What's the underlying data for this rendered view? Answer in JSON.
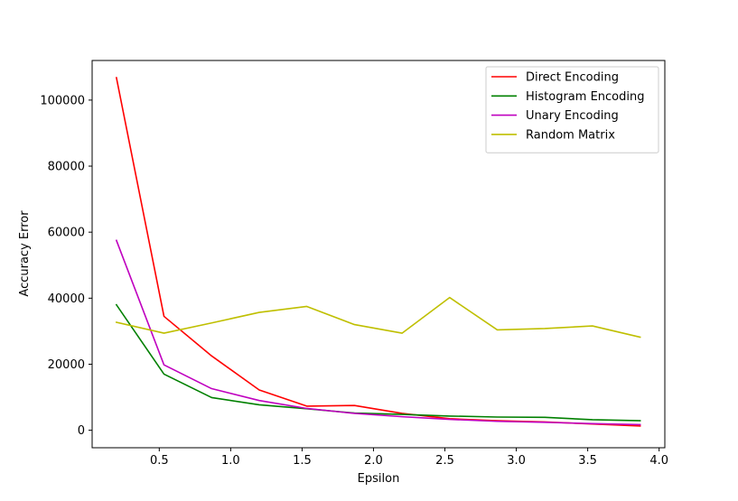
{
  "chart_data": {
    "type": "line",
    "xlabel": "Epsilon",
    "ylabel": "Accuracy Error",
    "xlim": [
      0.03,
      4.04
    ],
    "ylim": [
      -5300,
      112000
    ],
    "xticks": [
      0.5,
      1.0,
      1.5,
      2.0,
      2.5,
      3.0,
      3.5,
      4.0
    ],
    "xtick_labels": [
      "0.5",
      "1.0",
      "1.5",
      "2.0",
      "2.5",
      "3.0",
      "3.5",
      "4.0"
    ],
    "yticks": [
      0,
      20000,
      40000,
      60000,
      80000,
      100000
    ],
    "ytick_labels": [
      "0",
      "20000",
      "40000",
      "60000",
      "80000",
      "100000"
    ],
    "grid": false,
    "legend_position": "top-right",
    "x": [
      0.2,
      0.533,
      0.867,
      1.2,
      1.533,
      1.867,
      2.2,
      2.533,
      2.867,
      3.2,
      3.533,
      3.867
    ],
    "series": [
      {
        "name": "Direct Encoding",
        "color": "#ff0000",
        "values": [
          106800,
          34500,
          22500,
          12200,
          7300,
          7500,
          5100,
          3500,
          2900,
          2500,
          1900,
          1300
        ]
      },
      {
        "name": "Histogram Encoding",
        "color": "#008000",
        "values": [
          38000,
          17000,
          9900,
          7700,
          6500,
          5200,
          4800,
          4300,
          4000,
          3900,
          3200,
          2900
        ]
      },
      {
        "name": "Unary Encoding",
        "color": "#bf00bf",
        "values": [
          57500,
          19800,
          12600,
          9000,
          6600,
          5100,
          4100,
          3300,
          2700,
          2400,
          2000,
          1700
        ]
      },
      {
        "name": "Random Matrix",
        "color": "#bfbf00",
        "values": [
          32700,
          29400,
          32500,
          35700,
          37500,
          32000,
          29400,
          40200,
          30400,
          30800,
          31600,
          28200
        ]
      }
    ]
  }
}
